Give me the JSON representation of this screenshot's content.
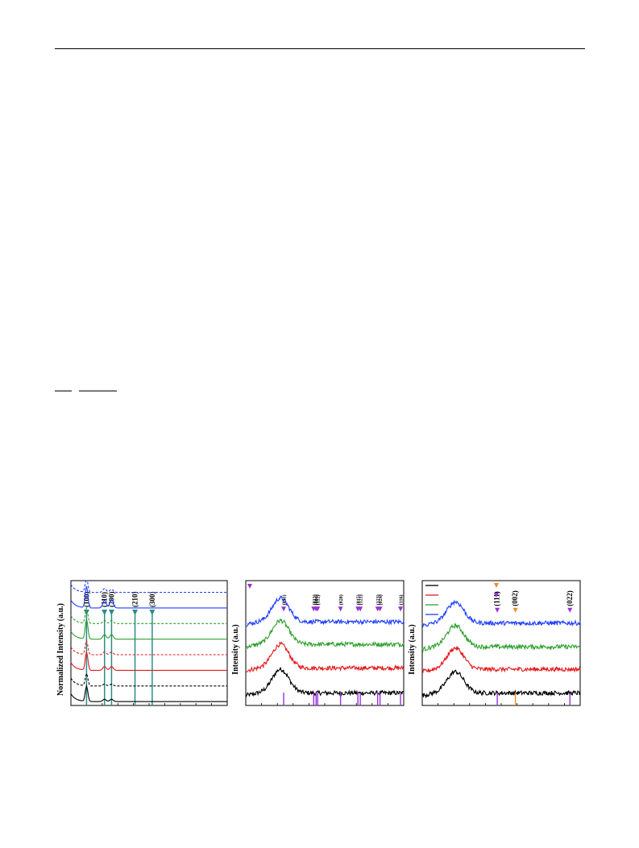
{
  "page": {
    "header_rule": true,
    "footnote_rules": true
  },
  "chart_data": [
    {
      "type": "line",
      "ylabel": "Normalized Intensity (a.u.)",
      "xlabel": "",
      "title": "",
      "xlim": [
        0,
        10
      ],
      "ylim": [
        0,
        8
      ],
      "grid": false,
      "legend": "none",
      "peak_markers": [
        {
          "label": "(100)",
          "x": 1.0,
          "color": "#2a8c8c"
        },
        {
          "label": "(110)",
          "x": 2.15,
          "color": "#2a8c8c"
        },
        {
          "label": "(200)",
          "x": 2.6,
          "color": "#2a8c8c"
        },
        {
          "label": "(210)",
          "x": 4.1,
          "color": "#2a8c8c"
        },
        {
          "label": "(300)",
          "x": 5.2,
          "color": "#2a8c8c"
        }
      ],
      "series": [
        {
          "color": "#000000",
          "style": "solid",
          "offset": 0.0,
          "peaks": [
            [
              1.0,
              1.0
            ],
            [
              2.15,
              0.15
            ],
            [
              2.6,
              0.15
            ]
          ]
        },
        {
          "color": "#000000",
          "style": "dashed",
          "offset": 1.0,
          "peaks": [
            [
              1.0,
              0.8
            ],
            [
              2.15,
              0.12
            ],
            [
              2.6,
              0.12
            ]
          ]
        },
        {
          "color": "#e31a1c",
          "style": "solid",
          "offset": 2.0,
          "peaks": [
            [
              1.0,
              1.2
            ],
            [
              2.15,
              0.25
            ],
            [
              2.6,
              0.25
            ]
          ]
        },
        {
          "color": "#e31a1c",
          "style": "dashed",
          "offset": 3.0,
          "peaks": [
            [
              1.0,
              0.9
            ],
            [
              2.15,
              0.18
            ],
            [
              2.6,
              0.18
            ]
          ]
        },
        {
          "color": "#2ca02c",
          "style": "solid",
          "offset": 4.0,
          "peaks": [
            [
              1.0,
              1.3
            ],
            [
              2.15,
              0.3
            ],
            [
              2.6,
              0.3
            ]
          ]
        },
        {
          "color": "#2ca02c",
          "style": "dashed",
          "offset": 5.0,
          "peaks": [
            [
              1.0,
              1.0
            ],
            [
              2.15,
              0.2
            ],
            [
              2.6,
              0.2
            ]
          ]
        },
        {
          "color": "#1f3fff",
          "style": "solid",
          "offset": 6.0,
          "peaks": [
            [
              1.0,
              1.4
            ],
            [
              2.15,
              0.5
            ],
            [
              2.6,
              0.55
            ]
          ]
        },
        {
          "color": "#1f3fff",
          "style": "dashed",
          "offset": 7.0,
          "peaks": [
            [
              1.0,
              0.9
            ],
            [
              2.15,
              0.25
            ],
            [
              2.6,
              0.2
            ]
          ]
        }
      ]
    },
    {
      "type": "line",
      "ylabel": "Intensity (a.u.)",
      "xlabel": "",
      "title": "",
      "xlim": [
        0,
        10
      ],
      "ylim": [
        0,
        10
      ],
      "grid": false,
      "legend": "top-left",
      "legend_marker_color": "#9b30d9",
      "peak_markers": [
        {
          "label": "(011)",
          "x": 2.4,
          "color": "#9b30d9"
        },
        {
          "label": "(013)",
          "x": 4.3,
          "color": "#9b30d9"
        },
        {
          "label": "(004)",
          "x": 4.45,
          "color": "#9b30d9"
        },
        {
          "label": "(112)",
          "x": 4.55,
          "color": "#9b30d9"
        },
        {
          "label": "(020)",
          "x": 6.0,
          "color": "#9b30d9"
        },
        {
          "label": "(015)",
          "x": 7.1,
          "color": "#9b30d9"
        },
        {
          "label": "(121)",
          "x": 7.25,
          "color": "#9b30d9"
        },
        {
          "label": "(123)",
          "x": 8.35,
          "color": "#9b30d9"
        },
        {
          "label": "(024)",
          "x": 8.5,
          "color": "#9b30d9"
        },
        {
          "label": "(116)",
          "x": 9.8,
          "color": "#9b30d9"
        }
      ],
      "series": [
        {
          "color": "#000000",
          "offset": 1.0,
          "hump_center": 2.2,
          "hump_height": 1.9
        },
        {
          "color": "#e31a1c",
          "offset": 3.0,
          "hump_center": 2.2,
          "hump_height": 1.9
        },
        {
          "color": "#2ca02c",
          "offset": 4.9,
          "hump_center": 2.2,
          "hump_height": 1.9
        },
        {
          "color": "#1f3fff",
          "offset": 6.7,
          "hump_center": 2.2,
          "hump_height": 1.9
        }
      ]
    },
    {
      "type": "line",
      "ylabel": "Intensity (a.u.)",
      "xlabel": "",
      "title": "",
      "xlim": [
        0,
        10
      ],
      "ylim": [
        0,
        10
      ],
      "grid": false,
      "legend": "top-left",
      "legend_series_colors": [
        "#000000",
        "#e31a1c",
        "#2ca02c",
        "#1f3fff"
      ],
      "legend_marker_colors": [
        "#f08c28",
        "#9b30d9"
      ],
      "peak_markers": [
        {
          "label": "(111)",
          "x": 4.75,
          "color": "#9b30d9"
        },
        {
          "label": "(002)",
          "x": 5.9,
          "color": "#f08c28"
        },
        {
          "label": "(022)",
          "x": 9.35,
          "color": "#9b30d9"
        }
      ],
      "series": [
        {
          "color": "#000000",
          "offset": 1.0,
          "hump_center": 2.1,
          "hump_height": 1.7
        },
        {
          "color": "#e31a1c",
          "offset": 2.9,
          "hump_center": 2.1,
          "hump_height": 1.7
        },
        {
          "color": "#2ca02c",
          "offset": 4.7,
          "hump_center": 2.1,
          "hump_height": 1.7
        },
        {
          "color": "#1f3fff",
          "offset": 6.6,
          "hump_center": 2.1,
          "hump_height": 1.7
        }
      ]
    }
  ]
}
